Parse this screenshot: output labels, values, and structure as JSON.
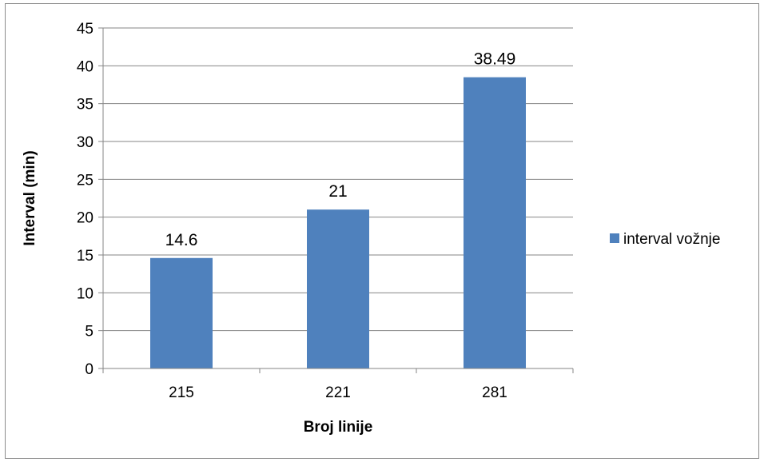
{
  "chart_data": {
    "type": "bar",
    "categories": [
      "215",
      "221",
      "281"
    ],
    "series": [
      {
        "name": "interval vožnje",
        "values": [
          14.6,
          21,
          38.49
        ],
        "color": "#4f81bd"
      }
    ],
    "data_labels": [
      "14.6",
      "21",
      "38.49"
    ],
    "xlabel": "Broj linije",
    "ylabel": "Interval (min)",
    "ylim": [
      0,
      45
    ],
    "yticks": [
      0,
      5,
      10,
      15,
      20,
      25,
      30,
      35,
      40,
      45
    ],
    "grid": true,
    "legend_position": "right"
  }
}
